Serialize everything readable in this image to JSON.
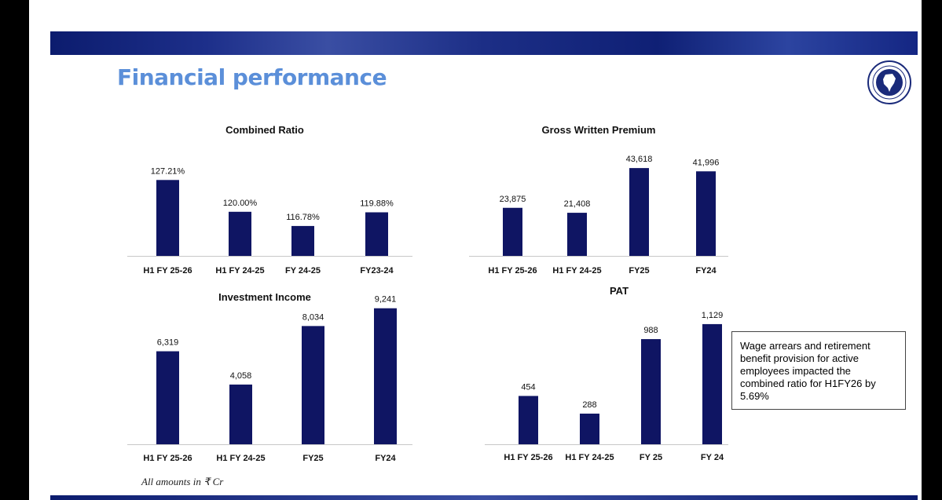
{
  "page": {
    "title": "Financial performance",
    "footnote": "All amounts in ₹ Cr",
    "note": "Wage arrears and retirement benefit provision for active employees impacted the combined ratio for H1FY26 by 5.69%",
    "colors": {
      "bar": "#0f1563",
      "title": "#5b8fd9",
      "band": "#1d2f8a"
    },
    "logo_icon": "emblem-seal-icon"
  },
  "chart_data": [
    {
      "type": "bar",
      "title": "Combined Ratio",
      "categories": [
        "H1 FY 25-26",
        "H1 FY 24-25",
        "FY 24-25",
        "FY23-24"
      ],
      "values": [
        127.21,
        120.0,
        116.78,
        119.88
      ],
      "labels": [
        "127.21%",
        "120.00%",
        "116.78%",
        "119.88%"
      ],
      "ylim": [
        110,
        131
      ]
    },
    {
      "type": "bar",
      "title": "Gross Written Premium",
      "categories": [
        "H1 FY 25-26",
        "H1 FY 24-25",
        "FY25",
        "FY24"
      ],
      "values": [
        23875,
        21408,
        43618,
        41996
      ],
      "labels": [
        "23,875",
        "21,408",
        "43,618",
        "41,996"
      ],
      "ylim": [
        0,
        46000
      ]
    },
    {
      "type": "bar",
      "title": "Investment Income",
      "categories": [
        "H1 FY 25-26",
        "H1 FY 24-25",
        "FY25",
        "FY24"
      ],
      "values": [
        6319,
        4058,
        8034,
        9241
      ],
      "labels": [
        "6,319",
        "4,058",
        "8,034",
        "9,241"
      ],
      "ylim": [
        0,
        9600
      ]
    },
    {
      "type": "bar",
      "title": "PAT",
      "categories": [
        "H1 FY 25-26",
        "H1 FY 24-25",
        "FY 25",
        "FY 24"
      ],
      "values": [
        454,
        288,
        988,
        1129
      ],
      "labels": [
        "454",
        "288",
        "988",
        "1,129"
      ],
      "ylim": [
        0,
        1180
      ]
    }
  ]
}
